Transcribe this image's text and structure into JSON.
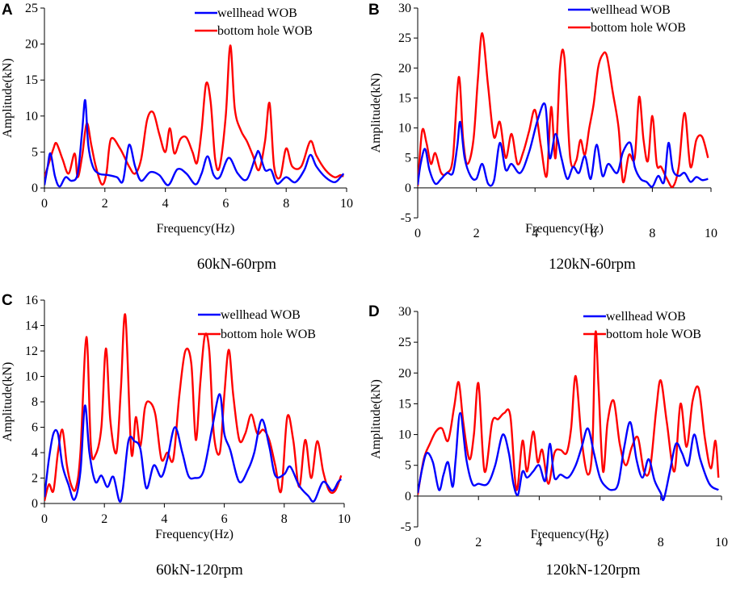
{
  "chart_data": [
    {
      "panel": "A",
      "type": "line",
      "caption": "60kN-60rpm",
      "xlabel": "Frequency(Hz)",
      "ylabel": "Amplitude(kN)",
      "xlim": [
        0,
        10
      ],
      "ylim": [
        0,
        25
      ],
      "xticks": [
        0,
        2,
        4,
        6,
        8,
        10
      ],
      "yticks": [
        0,
        5,
        10,
        15,
        20,
        25
      ],
      "legend_position": "top-right",
      "series": [
        {
          "name": "wellhead WOB",
          "color": "#0000ff",
          "x": [
            0,
            0.1,
            0.2,
            0.35,
            0.5,
            0.7,
            0.9,
            1.1,
            1.25,
            1.35,
            1.45,
            1.6,
            1.8,
            2.1,
            2.4,
            2.6,
            2.8,
            3.0,
            3.2,
            3.5,
            3.8,
            4.1,
            4.4,
            4.7,
            5.0,
            5.2,
            5.4,
            5.6,
            5.8,
            6.1,
            6.4,
            6.7,
            7.0,
            7.1,
            7.3,
            7.5,
            7.7,
            8.0,
            8.3,
            8.6,
            8.8,
            9.0,
            9.3,
            9.6,
            9.8,
            9.9
          ],
          "values": [
            0.4,
            2.8,
            4.8,
            1.6,
            0.2,
            1.5,
            1.0,
            2.0,
            8.0,
            12.2,
            6.0,
            3.0,
            2.0,
            1.8,
            1.5,
            1.0,
            6.0,
            3.0,
            1.0,
            2.2,
            1.8,
            0.4,
            2.6,
            2.0,
            0.5,
            2.0,
            4.4,
            1.8,
            1.5,
            4.2,
            2.0,
            1.2,
            4.5,
            5.0,
            2.5,
            2.5,
            0.6,
            1.5,
            0.8,
            2.5,
            4.6,
            3.0,
            1.5,
            0.8,
            1.5,
            2.0
          ]
        },
        {
          "name": "bottom hole WOB",
          "color": "#ff0000",
          "x": [
            0,
            0.15,
            0.3,
            0.4,
            0.6,
            0.8,
            1.0,
            1.1,
            1.25,
            1.4,
            1.55,
            1.7,
            1.9,
            2.05,
            2.2,
            2.5,
            2.8,
            3.0,
            3.2,
            3.4,
            3.6,
            3.8,
            4.0,
            4.15,
            4.3,
            4.5,
            4.7,
            4.9,
            5.05,
            5.2,
            5.35,
            5.5,
            5.65,
            5.8,
            6.0,
            6.15,
            6.3,
            6.5,
            6.7,
            6.9,
            7.1,
            7.3,
            7.45,
            7.6,
            7.8,
            8.0,
            8.2,
            8.5,
            8.8,
            9.0,
            9.3,
            9.6,
            9.8,
            9.9
          ],
          "values": [
            1.5,
            3.5,
            5.5,
            6.2,
            4.0,
            2.0,
            4.8,
            1.5,
            4.5,
            9.0,
            6.0,
            3.0,
            0.5,
            2.0,
            6.8,
            5.5,
            3.0,
            2.0,
            4.0,
            9.5,
            10.5,
            7.5,
            5.0,
            8.3,
            4.8,
            6.8,
            7.0,
            5.0,
            3.5,
            8.0,
            14.5,
            12.0,
            4.0,
            3.0,
            10.0,
            19.8,
            11.0,
            8.0,
            6.5,
            4.5,
            2.5,
            6.5,
            11.8,
            3.0,
            1.5,
            5.5,
            3.0,
            3.0,
            6.5,
            4.5,
            2.5,
            1.5,
            1.8,
            1.6
          ]
        }
      ]
    },
    {
      "panel": "B",
      "type": "line",
      "caption": "120kN-60rpm",
      "xlabel": "Frequency(Hz)",
      "ylabel": "Amplitude(kN)",
      "xlim": [
        0,
        10
      ],
      "ylim": [
        -5,
        30
      ],
      "xticks": [
        0,
        2,
        4,
        6,
        8,
        10
      ],
      "yticks": [
        -5,
        0,
        5,
        10,
        15,
        20,
        25,
        30
      ],
      "legend_position": "top-right",
      "series": [
        {
          "name": "wellhead WOB",
          "color": "#0000ff",
          "x": [
            0,
            0.1,
            0.25,
            0.4,
            0.6,
            0.8,
            1.0,
            1.2,
            1.35,
            1.45,
            1.6,
            1.8,
            2.0,
            2.2,
            2.4,
            2.6,
            2.8,
            3.0,
            3.2,
            3.5,
            3.8,
            4.1,
            4.35,
            4.5,
            4.7,
            4.9,
            5.1,
            5.3,
            5.5,
            5.7,
            5.9,
            6.1,
            6.3,
            6.5,
            6.8,
            7.0,
            7.25,
            7.4,
            7.6,
            7.8,
            8.0,
            8.2,
            8.4,
            8.55,
            8.7,
            8.9,
            9.1,
            9.3,
            9.5,
            9.7,
            9.9
          ],
          "values": [
            0.5,
            4.0,
            6.5,
            3.0,
            0.7,
            1.5,
            2.5,
            2.5,
            7.0,
            11.0,
            5.0,
            2.0,
            1.5,
            4.0,
            0.7,
            1.2,
            7.5,
            3.0,
            4.0,
            2.5,
            6.0,
            11.5,
            13.8,
            5.0,
            9.0,
            5.0,
            1.5,
            3.5,
            2.5,
            5.3,
            1.5,
            7.2,
            2.0,
            4.0,
            2.5,
            6.0,
            7.5,
            3.5,
            1.5,
            1.0,
            0.2,
            2.0,
            1.0,
            7.5,
            3.0,
            2.0,
            2.5,
            1.0,
            1.8,
            1.3,
            1.5
          ]
        },
        {
          "name": "bottom hole WOB",
          "color": "#ff0000",
          "x": [
            0,
            0.15,
            0.3,
            0.45,
            0.6,
            0.8,
            1.0,
            1.2,
            1.4,
            1.55,
            1.7,
            1.9,
            2.05,
            2.2,
            2.4,
            2.6,
            2.8,
            3.0,
            3.2,
            3.4,
            3.6,
            3.8,
            4.0,
            4.2,
            4.4,
            4.55,
            4.7,
            4.85,
            5.0,
            5.2,
            5.4,
            5.55,
            5.7,
            5.85,
            6.0,
            6.15,
            6.3,
            6.45,
            6.65,
            6.85,
            7.0,
            7.2,
            7.4,
            7.55,
            7.7,
            7.85,
            8.0,
            8.15,
            8.3,
            8.5,
            8.7,
            8.9,
            9.1,
            9.3,
            9.5,
            9.7,
            9.9
          ],
          "values": [
            0.3,
            9.5,
            7.5,
            4.0,
            5.8,
            2.5,
            2.5,
            5.0,
            18.5,
            8.0,
            4.0,
            8.0,
            18.0,
            25.8,
            17.0,
            8.5,
            11.0,
            5.0,
            9.0,
            4.0,
            6.0,
            9.5,
            13.0,
            7.0,
            2.0,
            13.5,
            5.0,
            20.0,
            21.8,
            5.0,
            4.5,
            8.0,
            5.5,
            10.0,
            14.0,
            20.0,
            22.2,
            22.0,
            16.0,
            10.0,
            1.0,
            5.5,
            5.0,
            15.2,
            8.0,
            4.5,
            12.0,
            4.0,
            3.5,
            1.5,
            0.2,
            3.5,
            12.5,
            3.5,
            8.0,
            8.5,
            5.0
          ]
        }
      ]
    },
    {
      "panel": "C",
      "type": "line",
      "caption": "60kN-120rpm",
      "xlabel": "Frequency(Hz)",
      "ylabel": "Amplitude(kN)",
      "xlim": [
        0,
        10
      ],
      "ylim": [
        0,
        16
      ],
      "xticks": [
        0,
        2,
        4,
        6,
        8,
        10
      ],
      "yticks": [
        0,
        2,
        4,
        6,
        8,
        10,
        12,
        14,
        16
      ],
      "legend_position": "top-right",
      "series": [
        {
          "name": "wellhead WOB",
          "color": "#0000ff",
          "x": [
            0,
            0.15,
            0.3,
            0.45,
            0.6,
            0.8,
            1.0,
            1.2,
            1.35,
            1.5,
            1.7,
            1.9,
            2.1,
            2.3,
            2.55,
            2.8,
            3.0,
            3.2,
            3.4,
            3.65,
            3.9,
            4.1,
            4.35,
            4.6,
            4.8,
            5.0,
            5.3,
            5.6,
            5.85,
            6.0,
            6.2,
            6.5,
            6.8,
            7.0,
            7.25,
            7.5,
            7.7,
            8.0,
            8.2,
            8.5,
            8.8,
            9.0,
            9.3,
            9.6,
            9.8,
            9.9
          ],
          "values": [
            0.5,
            3.5,
            5.5,
            5.5,
            3.0,
            1.5,
            0.3,
            2.5,
            7.7,
            4.0,
            1.7,
            2.2,
            1.3,
            2.1,
            0.2,
            4.9,
            4.9,
            4.3,
            1.2,
            3.0,
            2.1,
            3.5,
            6.0,
            4.0,
            2.2,
            2.0,
            2.5,
            6.0,
            8.6,
            5.5,
            4.2,
            1.7,
            2.7,
            4.0,
            6.6,
            4.5,
            2.2,
            2.3,
            2.9,
            1.4,
            0.6,
            0.2,
            1.7,
            1.0,
            1.7,
            1.9
          ]
        },
        {
          "name": "bottom hole WOB",
          "color": "#ff0000",
          "x": [
            0,
            0.15,
            0.3,
            0.45,
            0.6,
            0.75,
            0.9,
            1.05,
            1.2,
            1.4,
            1.55,
            1.7,
            1.9,
            2.05,
            2.2,
            2.4,
            2.55,
            2.7,
            2.9,
            3.05,
            3.2,
            3.35,
            3.5,
            3.7,
            3.9,
            4.1,
            4.3,
            4.5,
            4.7,
            4.9,
            5.05,
            5.2,
            5.35,
            5.5,
            5.65,
            5.85,
            6.0,
            6.15,
            6.3,
            6.5,
            6.7,
            6.9,
            7.1,
            7.3,
            7.5,
            7.7,
            7.9,
            8.1,
            8.3,
            8.5,
            8.7,
            8.9,
            9.1,
            9.3,
            9.5,
            9.7,
            9.9
          ],
          "values": [
            0.2,
            1.5,
            1.0,
            4.0,
            5.8,
            3.0,
            1.4,
            1.2,
            4.0,
            13.1,
            4.5,
            3.8,
            6.0,
            12.2,
            6.5,
            4.0,
            9.0,
            14.8,
            4.0,
            6.8,
            4.5,
            7.5,
            8.0,
            7.0,
            3.5,
            4.0,
            3.5,
            8.5,
            12.0,
            11.0,
            5.0,
            9.5,
            13.2,
            12.0,
            5.5,
            4.0,
            8.5,
            12.1,
            8.5,
            5.0,
            5.5,
            7.0,
            5.5,
            5.8,
            5.0,
            3.0,
            1.0,
            6.8,
            5.0,
            1.3,
            5.0,
            2.0,
            4.9,
            2.5,
            1.0,
            1.0,
            2.2
          ]
        }
      ]
    },
    {
      "panel": "D",
      "type": "line",
      "caption": "120kN-120rpm",
      "xlabel": "Frequency(Hz)",
      "ylabel": "Amplitude(kN)",
      "xlim": [
        0,
        10
      ],
      "ylim": [
        -5,
        30
      ],
      "xticks": [
        0,
        2,
        4,
        6,
        8,
        10
      ],
      "yticks": [
        -5,
        0,
        5,
        10,
        15,
        20,
        25,
        30
      ],
      "legend_position": "top-right",
      "series": [
        {
          "name": "wellhead WOB",
          "color": "#0000ff",
          "x": [
            0,
            0.15,
            0.3,
            0.5,
            0.7,
            0.85,
            1.0,
            1.15,
            1.25,
            1.4,
            1.6,
            1.8,
            2.0,
            2.3,
            2.55,
            2.8,
            3.0,
            3.15,
            3.3,
            3.45,
            3.6,
            3.8,
            4.0,
            4.2,
            4.35,
            4.5,
            4.7,
            4.95,
            5.2,
            5.4,
            5.6,
            5.8,
            6.0,
            6.2,
            6.4,
            6.6,
            6.8,
            7.0,
            7.2,
            7.4,
            7.6,
            7.8,
            8.0,
            8.1,
            8.3,
            8.5,
            8.7,
            8.9,
            9.1,
            9.3,
            9.6,
            9.9
          ],
          "values": [
            0.5,
            4.5,
            7.0,
            5.5,
            1.0,
            3.5,
            5.5,
            1.5,
            6.0,
            13.5,
            6.0,
            2.0,
            2.0,
            2.0,
            5.0,
            10.0,
            7.0,
            2.0,
            0.2,
            4.0,
            3.0,
            4.0,
            5.0,
            2.5,
            8.5,
            3.0,
            3.5,
            3.0,
            5.0,
            8.0,
            11.0,
            7.0,
            3.0,
            1.5,
            1.0,
            2.0,
            8.0,
            12.0,
            6.0,
            3.0,
            6.0,
            2.5,
            0.5,
            -0.5,
            4.0,
            8.5,
            7.0,
            5.0,
            10.0,
            6.0,
            2.0,
            1.0
          ]
        },
        {
          "name": "bottom hole WOB",
          "color": "#ff0000",
          "x": [
            0,
            0.2,
            0.4,
            0.6,
            0.8,
            1.0,
            1.2,
            1.35,
            1.5,
            1.7,
            1.85,
            2.0,
            2.2,
            2.45,
            2.65,
            2.85,
            3.05,
            3.25,
            3.45,
            3.6,
            3.8,
            3.95,
            4.1,
            4.3,
            4.5,
            4.7,
            4.9,
            5.05,
            5.2,
            5.4,
            5.6,
            5.75,
            5.85,
            5.95,
            6.1,
            6.25,
            6.45,
            6.65,
            6.85,
            7.05,
            7.25,
            7.45,
            7.65,
            7.85,
            8.0,
            8.2,
            8.45,
            8.65,
            8.85,
            9.05,
            9.25,
            9.45,
            9.65,
            9.8,
            9.9
          ],
          "values": [
            0.2,
            6.0,
            8.5,
            10.5,
            11.0,
            9.0,
            14.5,
            18.5,
            12.0,
            6.0,
            10.0,
            18.3,
            4.0,
            12.0,
            12.5,
            13.5,
            13.0,
            1.0,
            9.0,
            4.0,
            10.5,
            5.5,
            7.5,
            2.0,
            7.0,
            7.5,
            7.0,
            11.0,
            19.5,
            9.0,
            3.5,
            8.0,
            26.5,
            18.0,
            4.0,
            12.0,
            15.5,
            8.5,
            5.0,
            8.0,
            9.5,
            4.0,
            4.5,
            14.0,
            18.8,
            12.0,
            4.0,
            15.0,
            8.0,
            15.5,
            17.5,
            9.5,
            4.5,
            9.0,
            3.0
          ]
        }
      ]
    }
  ]
}
